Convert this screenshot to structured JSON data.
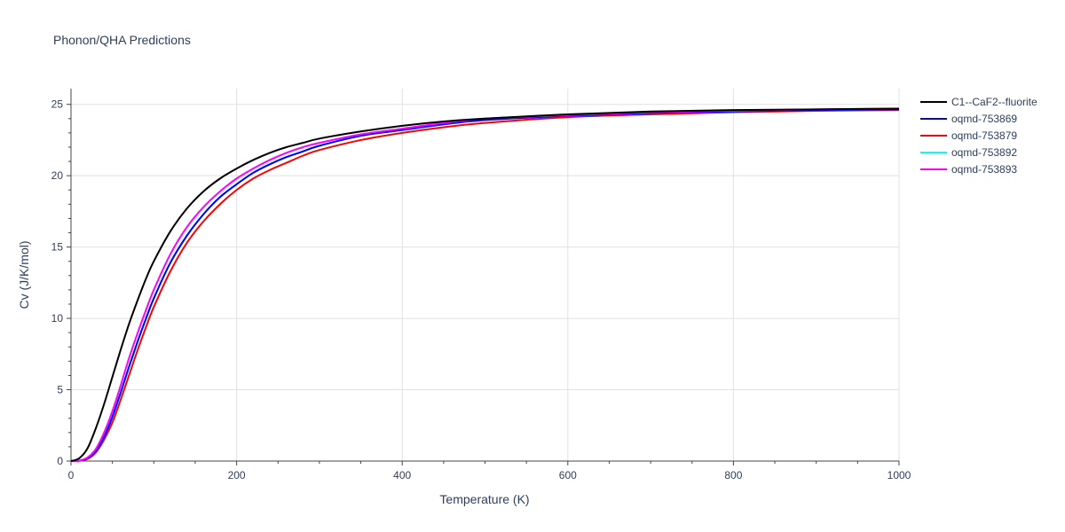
{
  "chart_data": {
    "type": "line",
    "title": "Phonon/QHA Predictions",
    "xlabel": "Temperature (K)",
    "ylabel": "Cv (J/K/mol)",
    "xlim": [
      0,
      1000
    ],
    "ylim": [
      0,
      26.1
    ],
    "xticks": [
      0,
      200,
      400,
      600,
      800,
      1000
    ],
    "xtick_labels": [
      "0",
      "200",
      "400",
      "600",
      "800",
      "1000"
    ],
    "yticks": [
      0,
      5,
      10,
      15,
      20,
      25
    ],
    "ytick_labels": [
      "0",
      "5",
      "10",
      "15",
      "20",
      "25"
    ],
    "grid": true,
    "legend_position": "top-right",
    "x": [
      0,
      10,
      20,
      30,
      40,
      50,
      60,
      70,
      80,
      90,
      100,
      120,
      140,
      160,
      180,
      200,
      220,
      240,
      260,
      280,
      300,
      350,
      400,
      450,
      500,
      600,
      700,
      800,
      900,
      1000
    ],
    "series": [
      {
        "name": "C1--CaF2--fluorite",
        "color": "#000000",
        "values": [
          0,
          0.2,
          0.9,
          2.3,
          4.0,
          5.9,
          7.8,
          9.6,
          11.2,
          12.7,
          14.0,
          16.1,
          17.7,
          18.9,
          19.8,
          20.5,
          21.1,
          21.6,
          22.0,
          22.3,
          22.6,
          23.1,
          23.5,
          23.8,
          24.0,
          24.3,
          24.5,
          24.6,
          24.65,
          24.7
        ]
      },
      {
        "name": "oqmd-753869",
        "color": "#0000ff",
        "values": [
          0,
          0.02,
          0.2,
          0.7,
          1.7,
          3.1,
          4.8,
          6.6,
          8.3,
          9.9,
          11.4,
          13.9,
          15.8,
          17.3,
          18.5,
          19.4,
          20.2,
          20.8,
          21.3,
          21.7,
          22.1,
          22.8,
          23.2,
          23.6,
          23.9,
          24.2,
          24.4,
          24.5,
          24.6,
          24.65
        ]
      },
      {
        "name": "oqmd-753879",
        "color": "#ff0000",
        "values": [
          0,
          0.02,
          0.15,
          0.6,
          1.5,
          2.7,
          4.3,
          6.0,
          7.7,
          9.3,
          10.8,
          13.3,
          15.3,
          16.8,
          18.0,
          19.0,
          19.8,
          20.4,
          20.9,
          21.4,
          21.8,
          22.5,
          23.0,
          23.4,
          23.7,
          24.1,
          24.3,
          24.45,
          24.55,
          24.6
        ]
      },
      {
        "name": "oqmd-753892",
        "color": "#00ffff",
        "values": [
          0,
          0.02,
          0.2,
          0.7,
          1.7,
          3.1,
          4.8,
          6.6,
          8.3,
          9.9,
          11.4,
          13.9,
          15.8,
          17.3,
          18.5,
          19.4,
          20.2,
          20.8,
          21.3,
          21.7,
          22.1,
          22.8,
          23.2,
          23.6,
          23.9,
          24.2,
          24.4,
          24.5,
          24.6,
          24.65
        ]
      },
      {
        "name": "oqmd-753893",
        "color": "#ff00ff",
        "values": [
          0,
          0.03,
          0.25,
          0.85,
          2.0,
          3.5,
          5.3,
          7.2,
          8.9,
          10.5,
          12.0,
          14.5,
          16.4,
          17.8,
          18.9,
          19.8,
          20.5,
          21.1,
          21.6,
          22.0,
          22.3,
          22.9,
          23.3,
          23.7,
          24.0,
          24.25,
          24.45,
          24.55,
          24.65,
          24.7
        ]
      }
    ]
  }
}
